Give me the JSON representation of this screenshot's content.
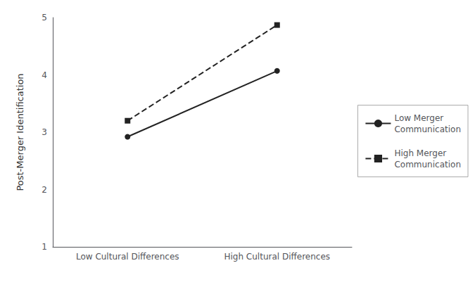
{
  "chart_data": {
    "type": "line",
    "categories": [
      "Low Cultural Differences",
      "High Cultural Differences"
    ],
    "series": [
      {
        "name": "Low Merger\nCommunication",
        "color": "#222222",
        "values": [
          2.92,
          4.07
        ],
        "marker": "circle",
        "line_style": "solid"
      },
      {
        "name": "High Merger\nCommunication",
        "color": "#222222",
        "values": [
          3.2,
          4.87
        ],
        "marker": "square",
        "line_style": "dashed"
      }
    ],
    "ylabel": "Post-Merger Identification",
    "ylim": [
      1,
      5
    ],
    "yticks": [
      1,
      2,
      3,
      4,
      5
    ],
    "grid": false,
    "legend": "right"
  }
}
